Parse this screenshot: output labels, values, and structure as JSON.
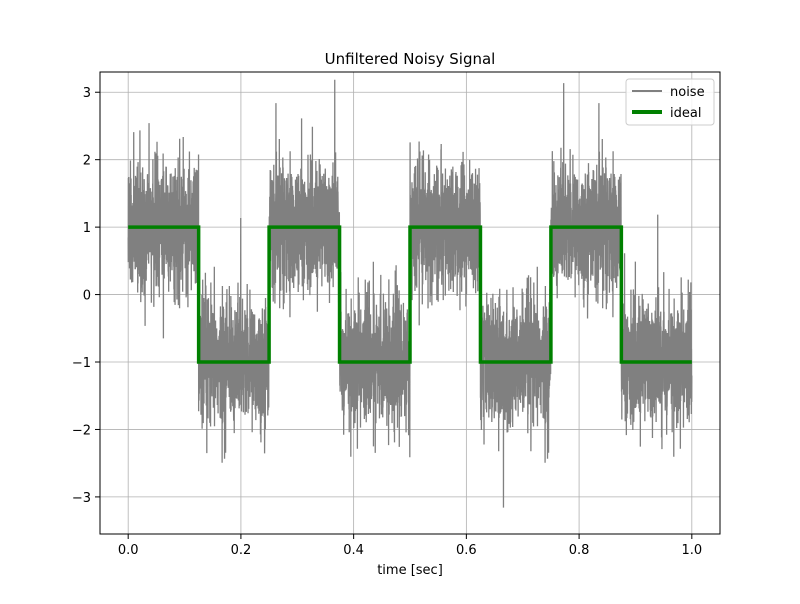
{
  "chart_data": {
    "type": "line",
    "title": "Unfiltered Noisy Signal",
    "xlabel": "time [sec]",
    "ylabel": "",
    "xlim": [
      -0.05,
      1.05
    ],
    "ylim": [
      -3.55,
      3.3
    ],
    "x_ticks": [
      0.0,
      0.2,
      0.4,
      0.6,
      0.8,
      1.0
    ],
    "x_tick_labels": [
      "0.0",
      "0.2",
      "0.4",
      "0.6",
      "0.8",
      "1.0"
    ],
    "y_ticks": [
      -3,
      -2,
      -1,
      0,
      1,
      2,
      3
    ],
    "y_tick_labels": [
      "−3",
      "−2",
      "−1",
      "0",
      "1",
      "2",
      "3"
    ],
    "grid": true,
    "legend": {
      "placement": "top-right",
      "entries": [
        "noise",
        "ideal"
      ]
    },
    "series": [
      {
        "name": "noise",
        "color": "#808080",
        "description_values": {
          "envelope_high_segments": {
            "y_range": [
              -0.3,
              2.3
            ],
            "peak_max": 3.0
          },
          "envelope_low_segments": {
            "y_range": [
              -2.3,
              0.3
            ],
            "peak_min": -3.25
          }
        },
        "x": [
          0.0,
          1.0
        ]
      },
      {
        "name": "ideal",
        "color": "#008000",
        "x": [
          0.0,
          0.125,
          0.125,
          0.25,
          0.25,
          0.375,
          0.375,
          0.5,
          0.5,
          0.625,
          0.625,
          0.75,
          0.75,
          0.875,
          0.875,
          1.0
        ],
        "y": [
          1,
          1,
          -1,
          -1,
          1,
          1,
          -1,
          -1,
          1,
          1,
          -1,
          -1,
          1,
          1,
          -1,
          -1
        ]
      }
    ],
    "square_wave": {
      "period": 0.25,
      "high": 1,
      "low": -1
    }
  }
}
